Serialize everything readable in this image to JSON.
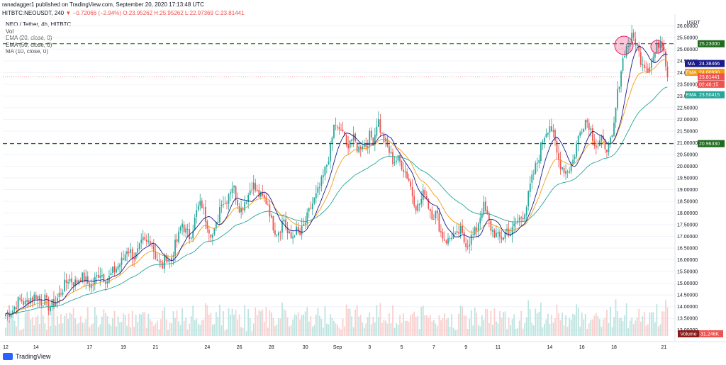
{
  "header": {
    "published_by": "ranadagger1 published on TradingView.com, September 20, 2020 17:13:48 UTC",
    "symbol_line": "HITBTC:NEOUSDT, 240",
    "change": "▼ −0.72066 (−2.94%)",
    "open": "O:23.95262",
    "high": "H:25.95262",
    "low": "L:22.97369",
    "close": "C:23.81441"
  },
  "legend": {
    "title": "NEO / Tether, 4h, HITBTC",
    "items": [
      "Vol",
      "EMA (20, close, 0)",
      "EMA (50, close, 0)",
      "MA (10, close, 0)"
    ]
  },
  "axis": {
    "currency": "USDT"
  },
  "tags": {
    "resistance": "25.23000",
    "ma": "24.38466",
    "ma_label": "MA",
    "ema20": "24.00930",
    "ema20_label": "EMA",
    "close": "23.81441",
    "countdown": "02:46:15",
    "ema50": "23.50415",
    "ema50_label": "EMA",
    "support": "20.96330",
    "volume_label": "Volume",
    "volume": "31.246K"
  },
  "footer": {
    "brand": "TradingView"
  },
  "colors": {
    "up": "#26a69a",
    "down": "#ef5350",
    "ma": "#1a1a8c",
    "ema20": "#f39c12",
    "ema50": "#26a69a",
    "level": "#1e6b1e",
    "highlight": "#e91e63"
  },
  "chart_data": {
    "type": "candlestick",
    "xlabel": "",
    "ylabel": "",
    "ylim": [
      12.75,
      26.25
    ],
    "yticks": [
      13.0,
      13.5,
      14.0,
      14.5,
      15.0,
      15.5,
      16.0,
      16.5,
      17.0,
      17.5,
      18.0,
      18.5,
      19.0,
      19.5,
      20.0,
      20.5,
      21.0,
      21.5,
      22.0,
      22.5,
      23.0,
      23.5,
      24.0,
      24.5,
      25.0,
      25.5,
      26.0
    ],
    "ytick_labels": [
      "13.00000",
      "13.50000",
      "14.00000",
      "14.50000",
      "15.00000",
      "15.50000",
      "16.00000",
      "16.50000",
      "17.00000",
      "17.50000",
      "18.00000",
      "18.50000",
      "19.00000",
      "19.50000",
      "20.00000",
      "20.50000",
      "21.00000",
      "21.50000",
      "22.00000",
      "22.50000",
      "23.00000",
      "23.50000",
      "24.00000",
      "24.50000",
      "25.00000",
      "25.50000",
      "26.00000"
    ],
    "x_ticks": [
      "12",
      "14",
      "17",
      "19",
      "21",
      "24",
      "26",
      "28",
      "30",
      "Sep",
      "3",
      "5",
      "7",
      "9",
      "11",
      "14",
      "16",
      "18",
      "21"
    ],
    "x_tick_bars": [
      0,
      17,
      47,
      66,
      84,
      113,
      131,
      149,
      168,
      186,
      204,
      222,
      240,
      258,
      276,
      305,
      323,
      341,
      369
    ],
    "levels": [
      25.23,
      20.9633
    ],
    "ohlc_bars_note": "approx readings; [open, high, low, close] per 4h bar, step-sampled",
    "series": [
      {
        "name": "NEO / Tether",
        "closes": [
          13.7,
          13.75,
          13.9,
          14.2,
          14.3,
          14.1,
          14.35,
          14.4,
          14.5,
          14.2,
          14.3,
          14.0,
          14.1,
          14.3,
          14.6,
          14.9,
          15.2,
          15.1,
          15.0,
          15.3,
          15.2,
          15.0,
          14.9,
          15.2,
          15.5,
          15.3,
          15.1,
          15.4,
          15.6,
          15.8,
          16.0,
          16.5,
          16.3,
          16.1,
          16.4,
          16.8,
          16.7,
          16.9,
          16.3,
          15.9,
          15.7,
          16.2,
          15.9,
          16.5,
          16.9,
          17.6,
          17.2,
          17.0,
          17.5,
          18.2,
          18.4,
          17.8,
          17.3,
          17.0,
          17.6,
          18.6,
          18.4,
          18.9,
          19.2,
          18.6,
          18.1,
          18.5,
          18.8,
          19.3,
          18.9,
          18.7,
          18.6,
          18.4,
          17.6,
          17.2,
          17.3,
          17.8,
          17.1,
          16.9,
          17.3,
          17.0,
          17.4,
          17.8,
          18.3,
          18.6,
          19.0,
          19.5,
          20.1,
          20.8,
          21.9,
          21.4,
          21.6,
          20.8,
          21.2,
          21.1,
          20.7,
          21.0,
          20.9,
          21.3,
          21.1,
          22.1,
          21.3,
          21.0,
          20.6,
          20.2,
          20.3,
          20.1,
          19.8,
          19.4,
          18.7,
          18.2,
          18.5,
          19.0,
          18.3,
          17.9,
          18.0,
          17.2,
          16.9,
          16.8,
          17.1,
          16.9,
          17.3,
          16.8,
          16.7,
          17.0,
          17.2,
          17.8,
          18.3,
          17.8,
          17.3,
          17.1,
          16.9,
          17.0,
          17.3,
          17.1,
          17.5,
          17.7,
          17.9,
          18.3,
          19.2,
          19.8,
          20.3,
          21.1,
          21.5,
          21.8,
          21.2,
          20.3,
          20.0,
          19.8,
          19.9,
          20.3,
          21.1,
          21.6,
          22.0,
          21.8,
          21.2,
          20.8,
          21.1,
          20.9,
          20.8,
          21.2,
          22.8,
          24.0,
          24.9,
          25.2,
          25.5,
          25.3,
          24.6,
          24.4,
          24.2,
          24.5,
          24.9,
          25.4,
          25.2,
          23.8
        ]
      }
    ]
  }
}
